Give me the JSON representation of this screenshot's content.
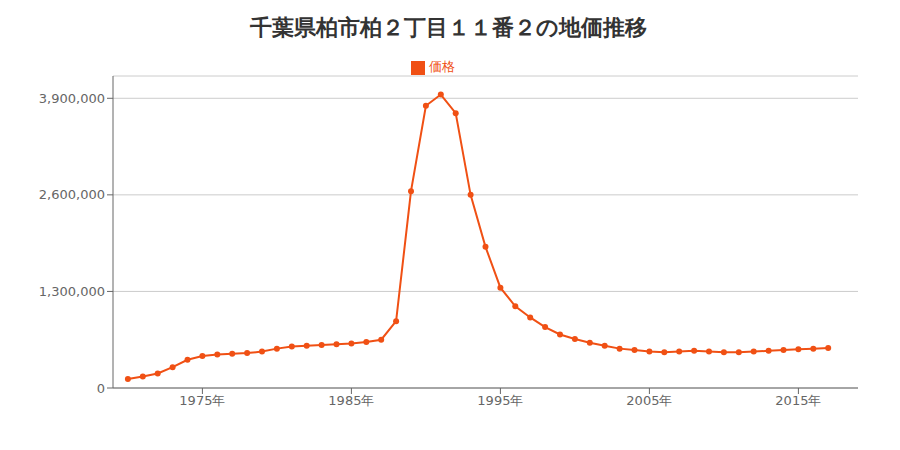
{
  "chart_data": {
    "type": "line",
    "title": "千葉県柏市柏２丁目１１番２の地価推移",
    "x": [
      1970,
      1971,
      1972,
      1973,
      1974,
      1975,
      1976,
      1977,
      1978,
      1979,
      1980,
      1981,
      1982,
      1983,
      1984,
      1985,
      1986,
      1987,
      1988,
      1989,
      1990,
      1991,
      1992,
      1993,
      1994,
      1995,
      1996,
      1997,
      1998,
      1999,
      2000,
      2001,
      2002,
      2003,
      2004,
      2005,
      2006,
      2007,
      2008,
      2009,
      2010,
      2011,
      2012,
      2013,
      2014,
      2015,
      2016,
      2017
    ],
    "series": [
      {
        "name": "価格",
        "color": "#f05014",
        "marker": "circle",
        "values": [
          120000,
          155000,
          195000,
          280000,
          380000,
          430000,
          450000,
          460000,
          470000,
          490000,
          530000,
          560000,
          570000,
          580000,
          590000,
          600000,
          620000,
          650000,
          900000,
          2650000,
          3800000,
          3950000,
          3700000,
          2600000,
          1900000,
          1350000,
          1100000,
          950000,
          820000,
          720000,
          660000,
          610000,
          570000,
          530000,
          510000,
          490000,
          480000,
          490000,
          500000,
          490000,
          480000,
          480000,
          490000,
          500000,
          510000,
          520000,
          530000,
          540000
        ]
      }
    ],
    "xlim": [
      1969,
      2019
    ],
    "xticks": [
      {
        "value": 1975,
        "label": "1975年"
      },
      {
        "value": 1985,
        "label": "1985年"
      },
      {
        "value": 1995,
        "label": "1995年"
      },
      {
        "value": 2005,
        "label": "2005年"
      },
      {
        "value": 2015,
        "label": "2015年"
      }
    ],
    "ylim": [
      0,
      4200000
    ],
    "yticks": [
      0,
      {
        "value": 1300000,
        "label": "1,300,000"
      },
      {
        "value": 2600000,
        "label": "2,600,000"
      },
      {
        "value": 3900000,
        "label": "3,900,000"
      }
    ],
    "grid": true,
    "legend": "top"
  }
}
